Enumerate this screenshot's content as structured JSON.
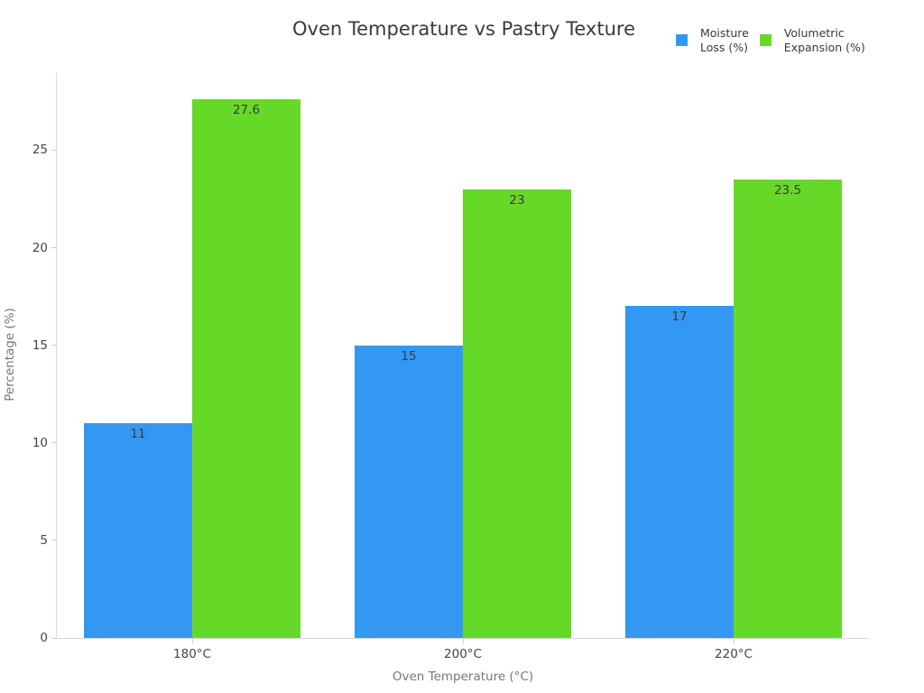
{
  "title": "Oven Temperature vs Pastry Texture",
  "legend": {
    "items": [
      {
        "name": "Moisture Loss (%)",
        "line1": "Moisture",
        "line2": "Loss (%)",
        "color": "#3398f2"
      },
      {
        "name": "Volumetric Expansion (%)",
        "line1": "Volumetric",
        "line2": "Expansion (%)",
        "color": "#66d928"
      }
    ]
  },
  "chart_data": {
    "type": "bar",
    "title": "Oven Temperature vs Pastry Texture",
    "categories": [
      "180°C",
      "200°C",
      "220°C"
    ],
    "series": [
      {
        "name": "Moisture Loss (%)",
        "color": "#3398f2",
        "values": [
          11,
          15,
          17
        ],
        "labels": [
          "11",
          "15",
          "17"
        ]
      },
      {
        "name": "Volumetric Expansion (%)",
        "color": "#66d928",
        "values": [
          27.6,
          23,
          23.5
        ],
        "labels": [
          "27.6",
          "23",
          "23.5"
        ]
      }
    ],
    "xlabel": "Oven Temperature (°C)",
    "ylabel": "Percentage (%)",
    "ylim": [
      0,
      29
    ],
    "yticks": [
      0,
      5,
      10,
      15,
      20,
      25
    ],
    "grid": false,
    "legend_position": "top-right",
    "colors": {
      "background": "#ffffff",
      "axis_line": "#d9d9d9",
      "tick": "#cccccc",
      "tick_label": "#444444",
      "axis_title": "#777777",
      "title": "#3b3b3b",
      "value_label": "#3a3a3a"
    }
  }
}
